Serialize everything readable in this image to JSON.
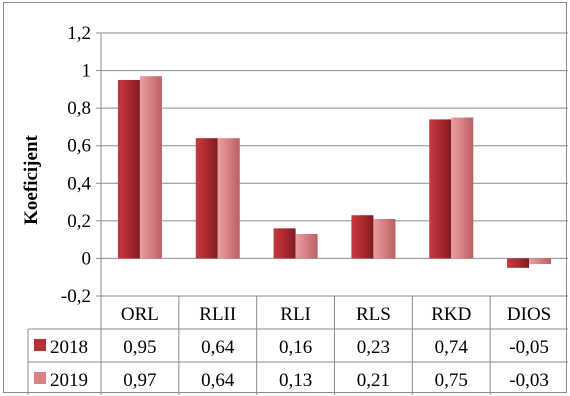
{
  "chart_data": {
    "type": "bar",
    "title": "",
    "ylabel": "Koeficijent",
    "xlabel": "",
    "ylim": [
      -0.2,
      1.2
    ],
    "yticks": [
      -0.2,
      0,
      0.2,
      0.4,
      0.6,
      0.8,
      1,
      1.2
    ],
    "ytick_labels": [
      "-0,2",
      "0",
      "0,2",
      "0,4",
      "0,6",
      "0,8",
      "1",
      "1,2"
    ],
    "grid": true,
    "legend": "data-table",
    "categories": [
      "ORL",
      "RLII",
      "RLI",
      "RLS",
      "RKD",
      "DIOS"
    ],
    "series": [
      {
        "name": "2018",
        "color": "#b53035",
        "values": [
          0.95,
          0.64,
          0.16,
          0.23,
          0.74,
          -0.05
        ],
        "labels": [
          "0,95",
          "0,64",
          "0,16",
          "0,23",
          "0,74",
          "-0,05"
        ]
      },
      {
        "name": "2019",
        "color": "#d98286",
        "values": [
          0.97,
          0.64,
          0.13,
          0.21,
          0.75,
          -0.03
        ],
        "labels": [
          "0,97",
          "0,64",
          "0,13",
          "0,21",
          "0,75",
          "-0,03"
        ]
      }
    ]
  }
}
